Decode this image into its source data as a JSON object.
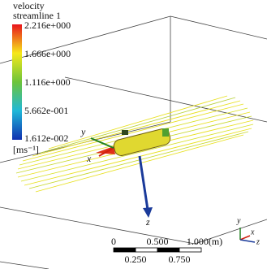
{
  "legend": {
    "title": "velocity",
    "subtitle": "streamline 1",
    "labels": [
      "2.216e+000",
      "1.666e+000",
      "1.116e+000",
      "5.662e-001",
      "1.612e-002"
    ],
    "units": "[ms⁻¹]"
  },
  "axes": {
    "y": "y",
    "x": "x",
    "z": "z"
  },
  "triad": {
    "y": "y",
    "x": "x",
    "z": "z"
  },
  "scale_bar": {
    "top": [
      "0",
      "0.500",
      "1.000(m)"
    ],
    "bottom": [
      "0.250",
      "0.750"
    ]
  }
}
